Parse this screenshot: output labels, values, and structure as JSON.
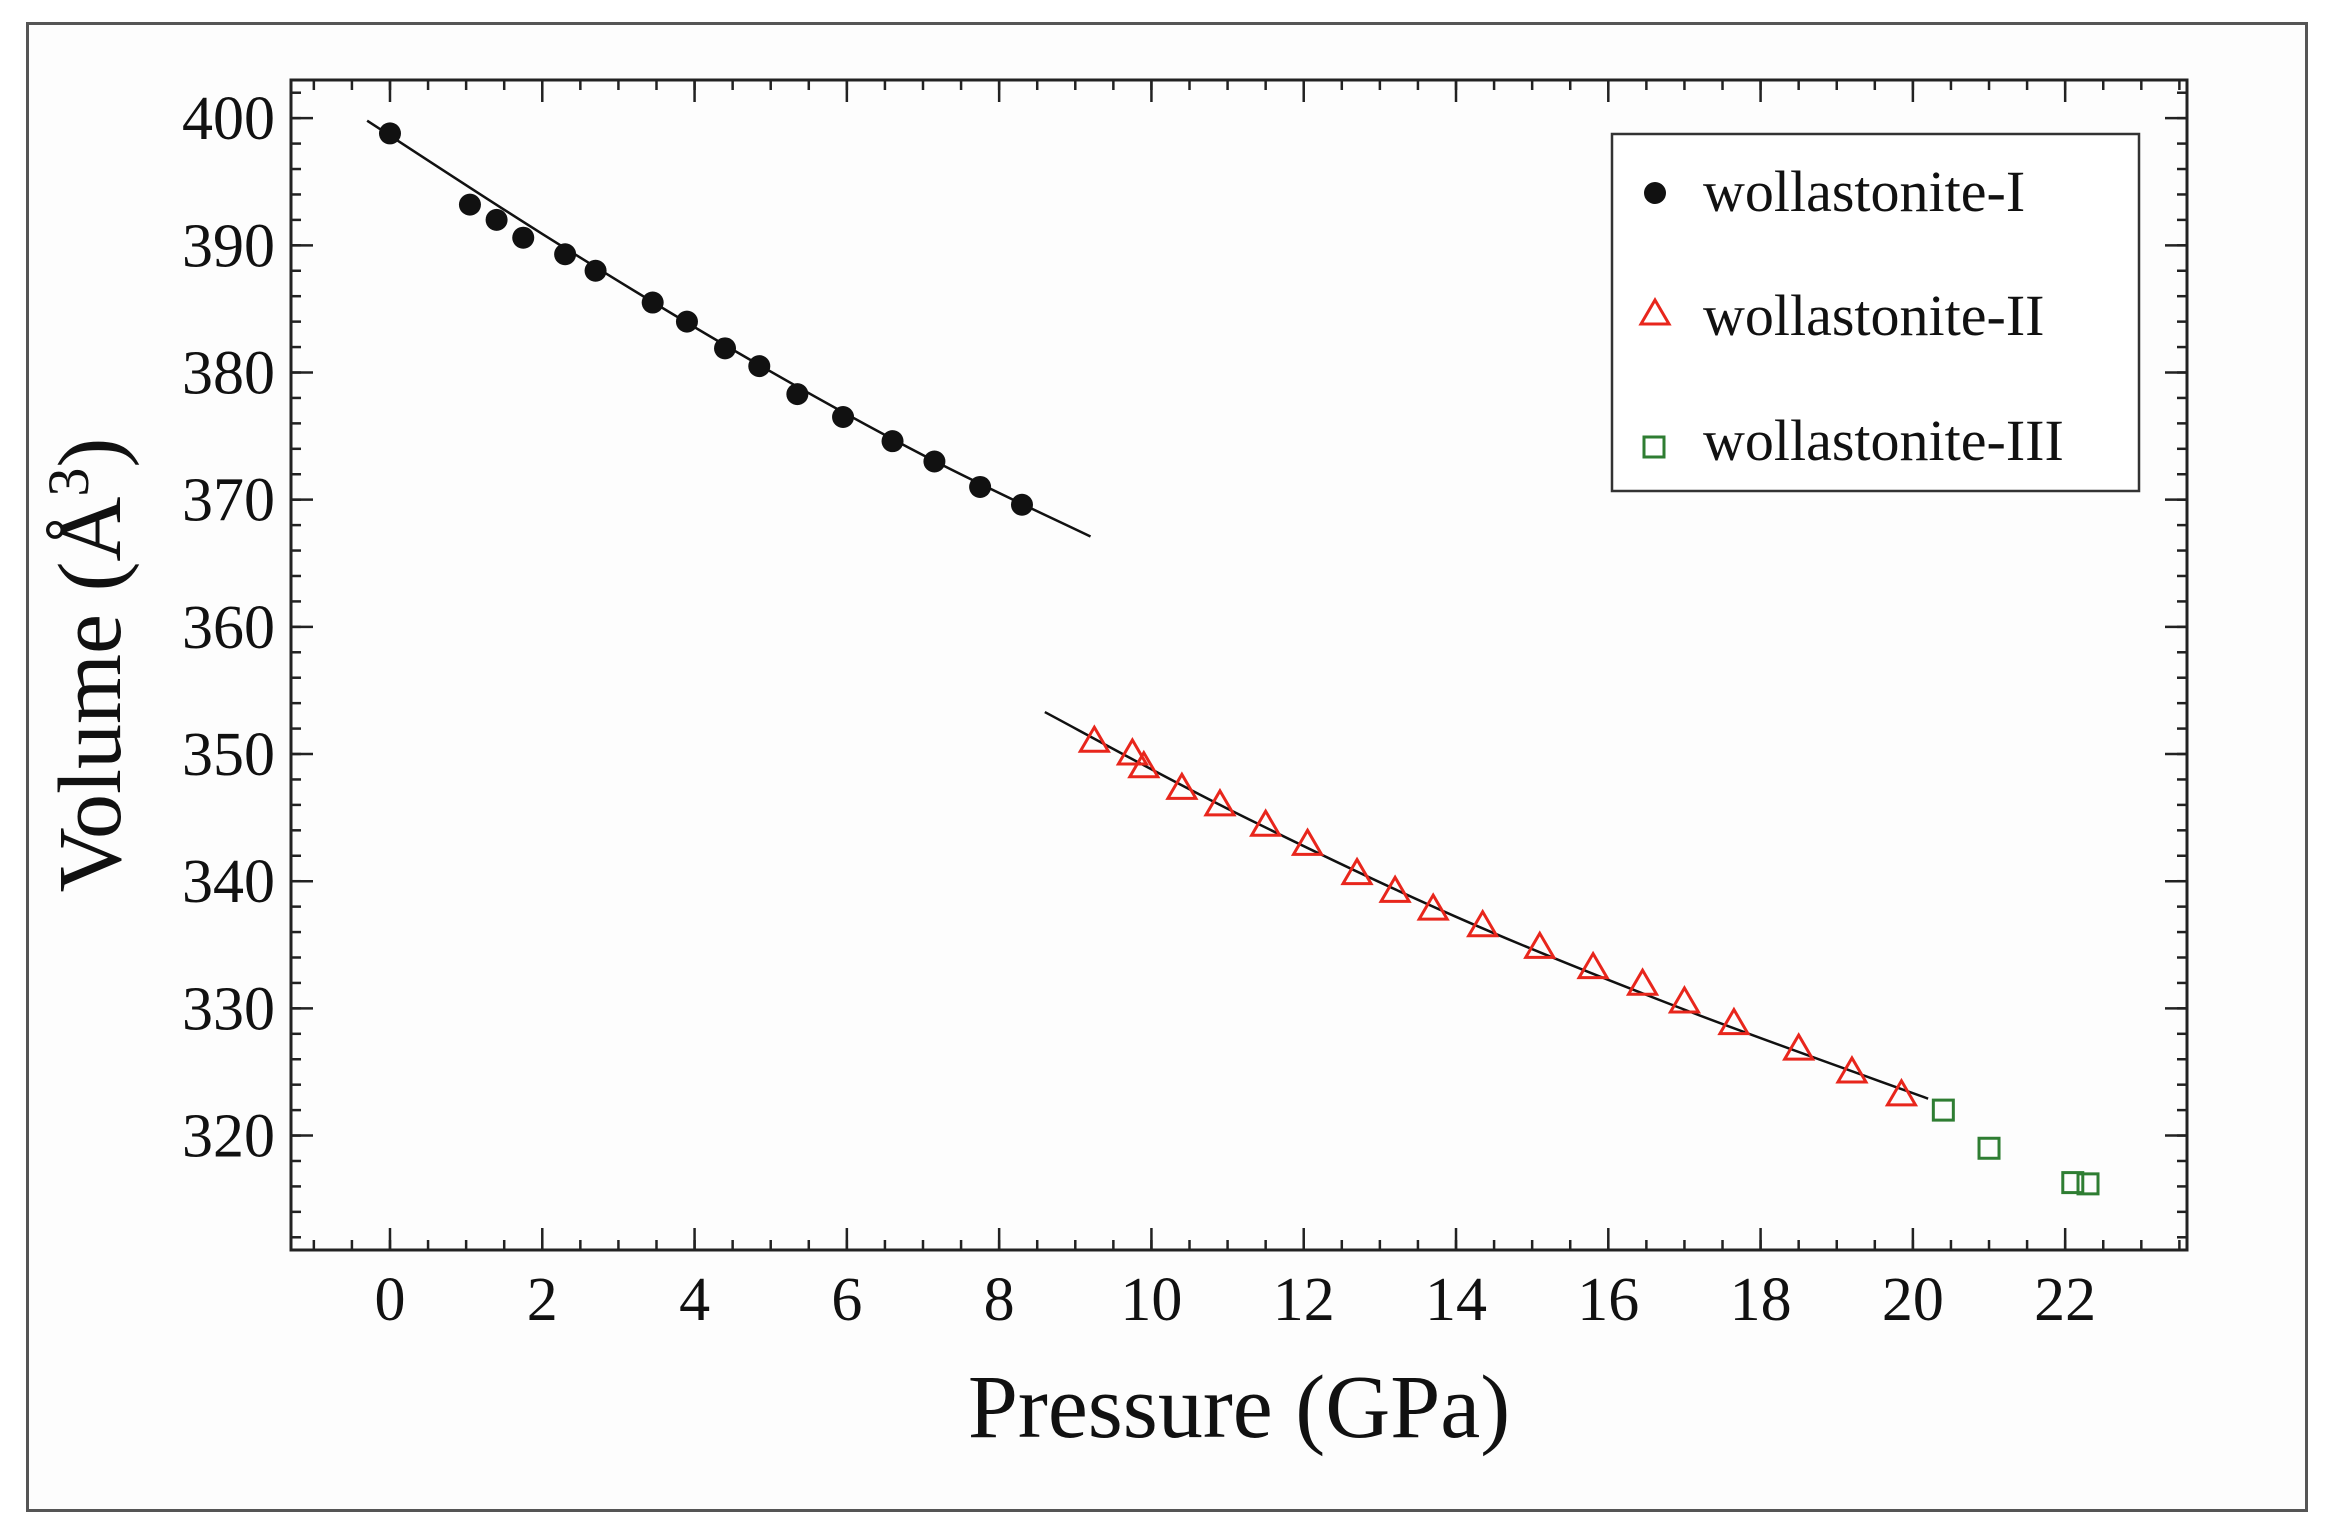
{
  "chart_data": {
    "type": "scatter",
    "xlabel": "Pressure (GPa)",
    "ylabel": "Volume (Å",
    "ylabel_superscript": "3",
    "ylabel_close": ")",
    "xlim": [
      -1.3,
      23.6
    ],
    "ylim": [
      311,
      403
    ],
    "xticks": [
      0,
      2,
      4,
      6,
      8,
      10,
      12,
      14,
      16,
      18,
      20,
      22
    ],
    "xtick_labels": [
      "0",
      "2",
      "4",
      "6",
      "8",
      "10",
      "12",
      "14",
      "16",
      "18",
      "20",
      "22"
    ],
    "yticks": [
      320,
      330,
      340,
      350,
      360,
      370,
      380,
      390,
      400
    ],
    "ytick_labels": [
      "320",
      "330",
      "340",
      "350",
      "360",
      "370",
      "380",
      "390",
      "400"
    ],
    "x_minor_step": 0.5,
    "y_minor_step": 2,
    "legend_position": "top-right",
    "series": [
      {
        "name": "wollastonite-I",
        "marker": "filled-circle",
        "color": "#111111",
        "x": [
          0.0,
          1.05,
          1.4,
          1.75,
          2.3,
          2.7,
          3.45,
          3.9,
          4.4,
          4.85,
          5.35,
          5.95,
          6.6,
          7.15,
          7.75,
          8.3
        ],
        "y": [
          398.8,
          393.2,
          392.0,
          390.6,
          389.3,
          388.0,
          385.5,
          384.0,
          381.9,
          380.5,
          378.3,
          376.5,
          374.6,
          373.0,
          371.0,
          369.6
        ]
      },
      {
        "name": "wollastonite-II",
        "marker": "open-triangle",
        "color": "#e8261c",
        "x": [
          9.25,
          9.75,
          9.9,
          10.4,
          10.9,
          11.5,
          12.05,
          12.7,
          13.2,
          13.7,
          14.35,
          15.1,
          15.8,
          16.45,
          17.0,
          17.65,
          18.5,
          19.2,
          19.85
        ],
        "y": [
          351.0,
          350.0,
          349.0,
          347.3,
          346.0,
          344.4,
          342.9,
          340.6,
          339.2,
          337.8,
          336.5,
          334.8,
          333.2,
          331.9,
          330.5,
          328.8,
          326.8,
          325.0,
          323.2
        ]
      },
      {
        "name": "wollastonite-III",
        "marker": "open-square",
        "color": "#2e7d32",
        "x": [
          20.4,
          21.0,
          22.1,
          22.3
        ],
        "y": [
          322.0,
          319.0,
          316.3,
          316.2
        ]
      }
    ],
    "fit_lines": [
      {
        "name": "wollastonite-I fit",
        "color": "#111111",
        "x": [
          -0.3,
          2.0,
          4.5,
          7.0,
          9.2
        ],
        "y": [
          399.8,
          390.9,
          381.8,
          373.5,
          367.1
        ]
      },
      {
        "name": "wollastonite-II fit",
        "color": "#111111",
        "x": [
          8.6,
          11.0,
          14.0,
          17.0,
          20.2
        ],
        "y": [
          353.3,
          345.7,
          337.2,
          329.9,
          322.9
        ]
      }
    ]
  }
}
